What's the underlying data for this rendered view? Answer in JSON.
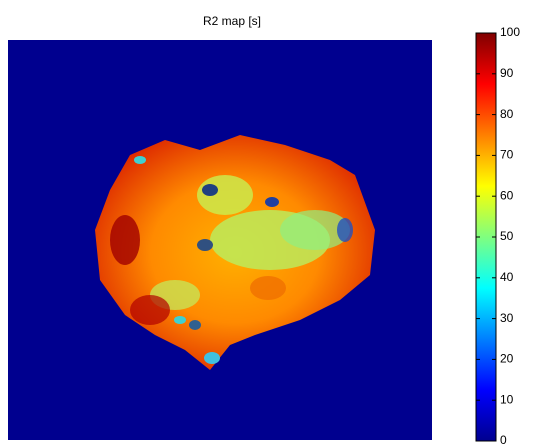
{
  "chart_data": {
    "type": "image",
    "title": "R2 map [s]",
    "colormap": "jet",
    "background_color": "#00008f",
    "ylim": [
      0,
      100
    ],
    "yticks": [
      0,
      10,
      20,
      30,
      40,
      50,
      60,
      70,
      80,
      90,
      100
    ]
  }
}
